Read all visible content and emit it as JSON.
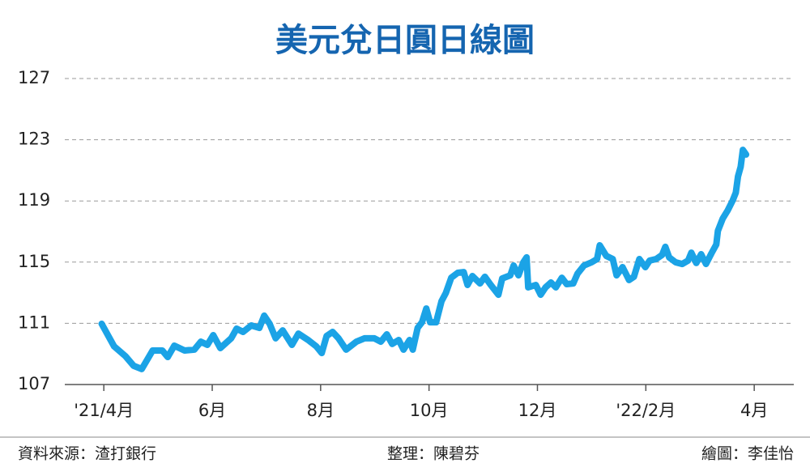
{
  "chart_data": {
    "type": "line",
    "title": "美元兌日圓日線圖",
    "color": "#1ba3e6",
    "xlim": [
      -0.72,
      12.73
    ],
    "xticks": [
      {
        "value": 0,
        "label": "'21/4月"
      },
      {
        "value": 2,
        "label": "6月"
      },
      {
        "value": 4,
        "label": "8月"
      },
      {
        "value": 6,
        "label": "10月"
      },
      {
        "value": 8,
        "label": "12月"
      },
      {
        "value": 10,
        "label": "'22/2月"
      },
      {
        "value": 12,
        "label": "4月"
      }
    ],
    "ylim": [
      107,
      127
    ],
    "yticks": [
      107,
      111,
      115,
      119,
      123,
      127
    ],
    "grid": true,
    "x": [
      -0.04,
      0.19,
      0.4,
      0.55,
      0.7,
      0.9,
      1.08,
      1.18,
      1.3,
      1.49,
      1.67,
      1.79,
      1.91,
      2.02,
      2.15,
      2.35,
      2.45,
      2.57,
      2.72,
      2.87,
      2.96,
      3.06,
      3.17,
      3.3,
      3.47,
      3.59,
      3.77,
      3.92,
      4.02,
      4.11,
      4.22,
      4.33,
      4.47,
      4.66,
      4.81,
      4.99,
      5.11,
      5.22,
      5.32,
      5.44,
      5.53,
      5.64,
      5.7,
      5.79,
      5.87,
      5.95,
      6.02,
      6.13,
      6.23,
      6.31,
      6.41,
      6.53,
      6.64,
      6.71,
      6.8,
      6.94,
      7.03,
      7.14,
      7.28,
      7.35,
      7.5,
      7.56,
      7.65,
      7.74,
      7.8,
      7.83,
      7.97,
      8.06,
      8.15,
      8.25,
      8.34,
      8.45,
      8.54,
      8.66,
      8.74,
      8.86,
      9.0,
      9.1,
      9.15,
      9.27,
      9.39,
      9.46,
      9.57,
      9.69,
      9.78,
      9.88,
      9.99,
      10.07,
      10.19,
      10.3,
      10.36,
      10.43,
      10.55,
      10.67,
      10.78,
      10.84,
      10.93,
      11.02,
      11.11,
      11.21,
      11.3,
      11.33,
      11.42,
      11.51,
      11.6,
      11.66,
      11.7,
      11.75,
      11.79,
      11.85
    ],
    "values": [
      110.97,
      109.49,
      108.85,
      108.22,
      108.01,
      109.22,
      109.22,
      108.8,
      109.54,
      109.22,
      109.28,
      109.8,
      109.59,
      110.23,
      109.38,
      110.02,
      110.65,
      110.44,
      110.86,
      110.7,
      111.5,
      110.97,
      110.02,
      110.54,
      109.59,
      110.33,
      109.91,
      109.49,
      109.06,
      110.17,
      110.44,
      110.02,
      109.28,
      109.8,
      110.02,
      110.02,
      109.8,
      110.28,
      109.65,
      109.91,
      109.28,
      109.91,
      109.28,
      110.7,
      111.07,
      111.97,
      111.07,
      111.07,
      112.45,
      112.98,
      113.98,
      114.3,
      114.35,
      113.51,
      114.09,
      113.61,
      114.04,
      113.51,
      112.87,
      113.93,
      114.14,
      114.78,
      114.14,
      114.99,
      115.31,
      113.35,
      113.51,
      112.87,
      113.35,
      113.67,
      113.35,
      113.98,
      113.56,
      113.61,
      114.25,
      114.78,
      114.99,
      115.2,
      116.1,
      115.41,
      115.2,
      114.14,
      114.67,
      113.83,
      114.04,
      115.2,
      114.67,
      115.1,
      115.2,
      115.47,
      116.0,
      115.31,
      114.99,
      114.88,
      115.1,
      115.62,
      114.94,
      115.52,
      114.88,
      115.57,
      116.15,
      117.05,
      117.85,
      118.38,
      119.01,
      119.54,
      120.6,
      121.23,
      122.34,
      122.03
    ]
  },
  "footer": {
    "source": "資料來源：渣打銀行",
    "editor": "整理：陳碧芬",
    "artist": "繪圖：李佳怡"
  }
}
